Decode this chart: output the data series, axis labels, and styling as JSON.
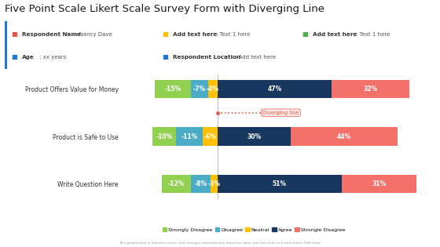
{
  "title": "Five Point Scale Likert Scale Survey Form with Diverging Line",
  "title_fontsize": 9.5,
  "questions": [
    "Product Offers Value for Money",
    "Product is Safe to Use",
    "Write Question Here"
  ],
  "segments": {
    "strongly_disagree": [
      -15,
      -10,
      -12
    ],
    "disagree": [
      -7,
      -11,
      -8
    ],
    "neutral": [
      -4,
      -6,
      -3
    ],
    "agree": [
      47,
      30,
      51
    ],
    "strongly_agree": [
      32,
      44,
      31
    ]
  },
  "colors": {
    "strongly_disagree": "#92D050",
    "disagree": "#4BACC6",
    "neutral": "#FFC000",
    "agree": "#17375E",
    "strongly_agree": "#F4716A"
  },
  "legend_labels": [
    "Strongly Disagree",
    "Disagree",
    "Neutral",
    "Agree",
    "Strongle Disagree"
  ],
  "info_box_bg": "#F0F0F0",
  "info_box_border": "#1F78D1",
  "diverging_line_label": "Diverging line",
  "footer": "This graphichart is linked to excel, and changes automatically based on data. Just left click on it and select 'Edit Data'",
  "bg_color": "#FFFFFF",
  "bar_height": 0.38,
  "xlim_left": -38,
  "xlim_right": 88
}
